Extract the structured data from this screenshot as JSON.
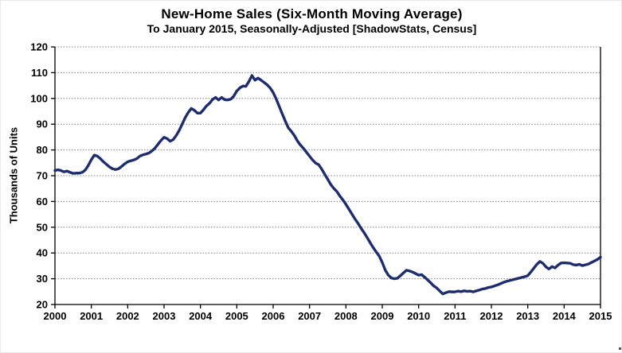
{
  "chart_data": {
    "type": "line",
    "title": "New-Home Sales (Six-Month Moving Average)",
    "subtitle": "To January 2015, Seasonally-Adjusted [ShadowStats, Census]",
    "ylabel": "Thousands of Units",
    "xlabel": "",
    "ylim": [
      20,
      120
    ],
    "xlim": [
      2000,
      2015
    ],
    "yticks": [
      20,
      30,
      40,
      50,
      60,
      70,
      80,
      90,
      100,
      110,
      120
    ],
    "xticks": [
      2000,
      2001,
      2002,
      2003,
      2004,
      2005,
      2006,
      2007,
      2008,
      2009,
      2010,
      2011,
      2012,
      2013,
      2014,
      2015
    ],
    "grid": "horizontal-dotted",
    "grid_color": "#7f7f7f",
    "axis_color": "#000000",
    "line_color": "#1e2d6e",
    "legend": "none",
    "series": [
      {
        "name": "New-home sales (six-month moving average)",
        "start_year": 2000,
        "interval_months": 1,
        "end_label": "January 2015",
        "values": [
          72.0,
          72.3,
          72.0,
          71.5,
          71.8,
          71.3,
          70.9,
          71.0,
          71.0,
          71.3,
          72.2,
          74.0,
          76.2,
          78.0,
          77.6,
          76.6,
          75.4,
          74.4,
          73.4,
          72.7,
          72.4,
          72.7,
          73.6,
          74.6,
          75.4,
          75.8,
          76.1,
          76.6,
          77.6,
          78.1,
          78.4,
          78.8,
          79.6,
          80.7,
          82.2,
          83.7,
          84.9,
          84.4,
          83.4,
          84.0,
          85.6,
          87.6,
          90.1,
          92.6,
          94.6,
          96.1,
          95.4,
          94.3,
          94.3,
          95.6,
          97.1,
          98.1,
          99.6,
          100.4,
          99.4,
          100.4,
          99.5,
          99.4,
          99.7,
          100.9,
          102.9,
          104.1,
          104.8,
          104.7,
          106.6,
          108.9,
          107.1,
          107.9,
          107.1,
          106.2,
          105.3,
          104.1,
          102.3,
          99.8,
          96.9,
          94.0,
          91.2,
          88.6,
          87.2,
          85.6,
          83.5,
          81.9,
          80.6,
          79.1,
          77.6,
          76.1,
          74.9,
          74.3,
          72.6,
          70.6,
          68.6,
          66.6,
          65.1,
          63.9,
          62.1,
          60.6,
          58.9,
          57.0,
          55.1,
          53.2,
          51.5,
          49.6,
          47.9,
          46.0,
          44.0,
          42.1,
          40.4,
          38.8,
          36.3,
          33.3,
          31.4,
          30.3,
          30.0,
          30.2,
          31.2,
          32.3,
          33.3,
          33.0,
          32.6,
          32.0,
          31.4,
          31.6,
          30.6,
          29.5,
          28.4,
          27.2,
          26.4,
          25.2,
          24.1,
          24.6,
          25.0,
          24.9,
          24.9,
          25.2,
          25.0,
          25.3,
          25.1,
          25.2,
          24.9,
          25.3,
          25.6,
          26.0,
          26.2,
          26.6,
          26.8,
          27.2,
          27.6,
          28.1,
          28.6,
          29.0,
          29.3,
          29.6,
          29.9,
          30.2,
          30.5,
          30.8,
          31.2,
          32.6,
          34.1,
          35.6,
          36.7,
          36.0,
          34.6,
          33.8,
          34.7,
          34.2,
          35.3,
          36.1,
          36.2,
          36.1,
          36.0,
          35.5,
          35.3,
          35.6,
          35.1,
          35.4,
          35.7,
          36.3,
          36.9,
          37.5,
          38.4
        ]
      }
    ]
  }
}
